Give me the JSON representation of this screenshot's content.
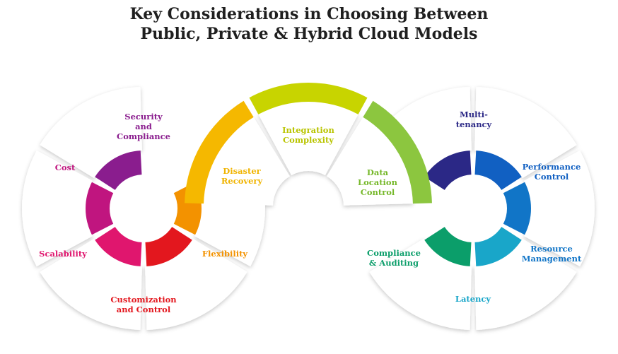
{
  "title": {
    "line1": "Key Considerations in Choosing Between",
    "line2": "Public, Private & Hybrid Cloud Models"
  },
  "colors": {
    "cost": "#c0157f",
    "security": "#8a1d8e",
    "scalability": "#e0166e",
    "customization": "#e3171e",
    "flexibility": "#f39200",
    "disaster": "#f5b800",
    "integration": "#c8d400",
    "data_location": "#8cc63f",
    "compliance": "#0b9e6a",
    "latency": "#19a6c9",
    "resource": "#1175c7",
    "performance": "#1160c2",
    "multitenancy": "#2b2886"
  },
  "segments": {
    "cost": "Cost",
    "security": "Security\nand\nCompliance",
    "scalability": "Scalability",
    "customization": "Customization\nand Control",
    "flexibility": "Flexibility",
    "disaster": "Disaster\nRecovery",
    "integration": "Integration\nComplexity",
    "data_location": "Data\nLocation\nControl",
    "compliance": "Compliance\n& Auditing",
    "latency": "Latency",
    "resource": "Resource\nManagement",
    "performance": "Performance\nControl",
    "multitenancy": "Multi-\ntenancy"
  }
}
